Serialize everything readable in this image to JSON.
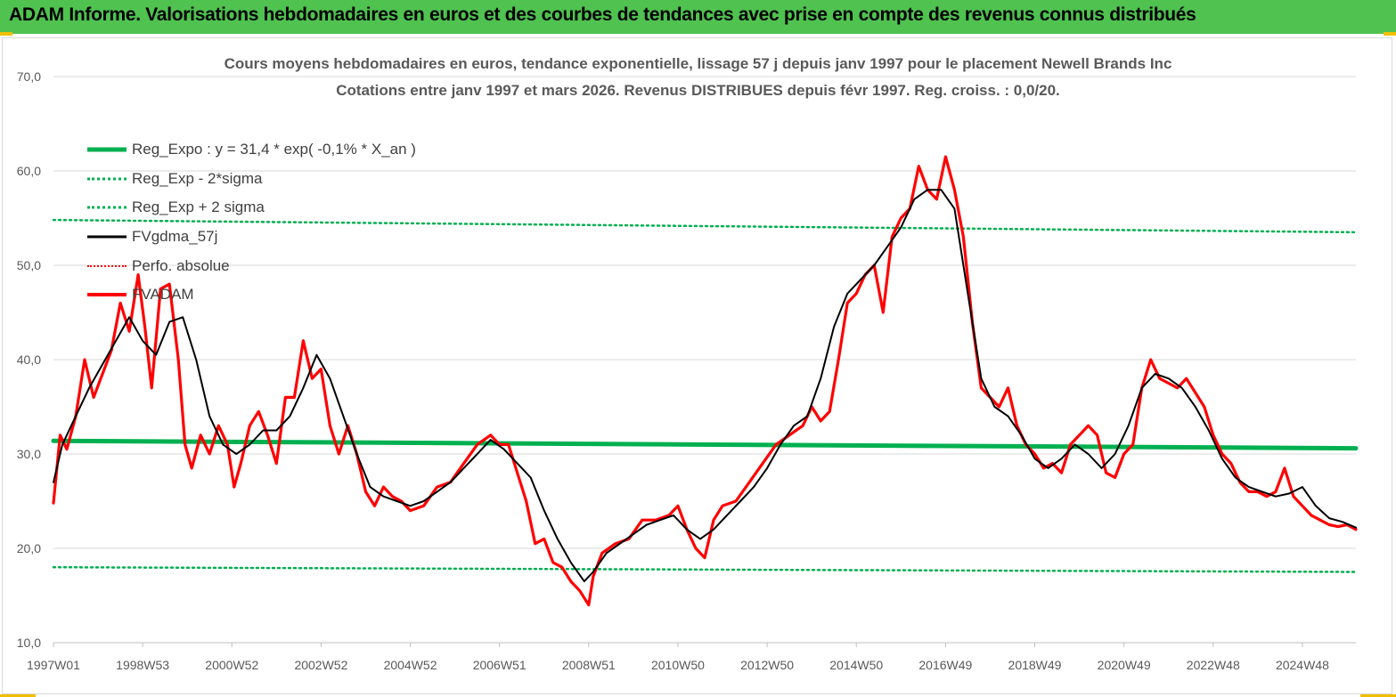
{
  "banner": {
    "text": "ADAM Informe. Valorisations hebdomadaires en euros et des courbes de tendances avec prise en compte des revenus connus distribués"
  },
  "colors": {
    "banner_bg": "#4fc24f",
    "reg_expo": "#00b050",
    "sigma_bands": "#00b050",
    "fvgdma": "#000000",
    "perfo": "#ff0000",
    "fvadam": "#ff0000",
    "grid": "#d9d9d9",
    "axis_text": "#595959"
  },
  "chart_data": {
    "type": "line",
    "title": "Cours moyens hebdomadaires en euros, tendance exponentielle, lissage 57 j depuis janv 1997 pour le placement Newell Brands Inc",
    "subtitle": "Cotations entre janv 1997 et mars 2026. Revenus DISTRIBUES depuis févr 1997. Reg. croiss. : 0,0/20.",
    "xlabel": "",
    "ylabel": "",
    "x_range": [
      1997.0,
      2026.2
    ],
    "ylim": [
      10,
      70
    ],
    "y_ticks": [
      "10,0",
      "20,0",
      "30,0",
      "40,0",
      "50,0",
      "60,0",
      "70,0"
    ],
    "y_tick_values": [
      10,
      20,
      30,
      40,
      50,
      60,
      70
    ],
    "x_tick_labels": [
      "1997W01",
      "1998W53",
      "2000W52",
      "2002W52",
      "2004W52",
      "2006W51",
      "2008W51",
      "2010W50",
      "2012W50",
      "2014W50",
      "2016W49",
      "2018W49",
      "2020W49",
      "2022W48",
      "2024W48"
    ],
    "x_tick_values": [
      1997.0,
      1999.0,
      2001.0,
      2003.0,
      2005.0,
      2007.0,
      2009.0,
      2011.0,
      2013.0,
      2015.0,
      2017.0,
      2019.0,
      2021.0,
      2023.0,
      2025.0
    ],
    "grid": true,
    "legend_position": "top-left",
    "legend": [
      {
        "label": "Reg_Expo : y = 31,4 * exp( -0,1% *  X_an )",
        "style": "solid-thick",
        "color": "#00b050"
      },
      {
        "label": "Reg_Exp - 2*sigma",
        "style": "dotted",
        "color": "#00b050"
      },
      {
        "label": "Reg_Exp + 2 sigma",
        "style": "dotted",
        "color": "#00b050"
      },
      {
        "label": "FVgdma_57j",
        "style": "solid",
        "color": "#000000"
      },
      {
        "label": "Perfo. absolue",
        "style": "dotted",
        "color": "#ff0000"
      },
      {
        "label": "FVADAM",
        "style": "solid-thick",
        "color": "#ff0000"
      }
    ],
    "series": [
      {
        "name": "Reg_Expo : y = 31,4 * exp( -0,1% *  X_an )",
        "x": [
          1997.0,
          2026.2
        ],
        "y": [
          31.4,
          30.6
        ]
      },
      {
        "name": "Reg_Exp - 2*sigma",
        "x": [
          1997.0,
          2026.2
        ],
        "y": [
          18.0,
          17.5
        ]
      },
      {
        "name": "Reg_Exp + 2 sigma",
        "x": [
          1997.0,
          2026.2
        ],
        "y": [
          54.8,
          53.5
        ]
      },
      {
        "name": "FVADAM",
        "x": [
          1997.0,
          1997.15,
          1997.3,
          1997.5,
          1997.7,
          1997.9,
          1998.1,
          1998.3,
          1998.5,
          1998.7,
          1998.9,
          1999.05,
          1999.2,
          1999.4,
          1999.6,
          1999.8,
          1999.95,
          2000.1,
          2000.3,
          2000.5,
          2000.7,
          2000.9,
          2001.05,
          2001.2,
          2001.4,
          2001.6,
          2001.8,
          2002.0,
          2002.2,
          2002.4,
          2002.6,
          2002.8,
          2003.0,
          2003.2,
          2003.4,
          2003.6,
          2003.8,
          2004.0,
          2004.2,
          2004.4,
          2004.6,
          2004.8,
          2005.0,
          2005.3,
          2005.6,
          2005.9,
          2006.2,
          2006.5,
          2006.8,
          2007.0,
          2007.2,
          2007.4,
          2007.6,
          2007.8,
          2008.0,
          2008.2,
          2008.4,
          2008.6,
          2008.8,
          2009.0,
          2009.1,
          2009.3,
          2009.6,
          2009.9,
          2010.2,
          2010.5,
          2010.8,
          2011.0,
          2011.2,
          2011.4,
          2011.6,
          2011.8,
          2012.0,
          2012.3,
          2012.6,
          2012.9,
          2013.2,
          2013.5,
          2013.8,
          2014.0,
          2014.2,
          2014.4,
          2014.6,
          2014.8,
          2015.0,
          2015.2,
          2015.4,
          2015.6,
          2015.8,
          2016.0,
          2016.2,
          2016.4,
          2016.6,
          2016.8,
          2017.0,
          2017.2,
          2017.4,
          2017.6,
          2017.8,
          2018.0,
          2018.2,
          2018.4,
          2018.6,
          2018.8,
          2019.0,
          2019.2,
          2019.4,
          2019.6,
          2019.8,
          2020.0,
          2020.2,
          2020.4,
          2020.6,
          2020.8,
          2021.0,
          2021.2,
          2021.4,
          2021.6,
          2021.8,
          2022.0,
          2022.2,
          2022.4,
          2022.6,
          2022.8,
          2023.0,
          2023.2,
          2023.4,
          2023.6,
          2023.8,
          2024.0,
          2024.2,
          2024.4,
          2024.6,
          2024.8,
          2025.0,
          2025.2,
          2025.4,
          2025.6,
          2025.8,
          2026.0,
          2026.2
        ],
        "y": [
          24.8,
          32.0,
          30.5,
          34.0,
          40.0,
          36.0,
          38.5,
          41.0,
          46.0,
          43.0,
          49.0,
          43.5,
          37.0,
          47.5,
          48.0,
          40.0,
          31.0,
          28.5,
          32.0,
          30.0,
          33.0,
          31.0,
          26.5,
          29.0,
          33.0,
          34.5,
          32.0,
          29.0,
          36.0,
          36.0,
          42.0,
          38.0,
          39.0,
          33.0,
          30.0,
          33.0,
          30.0,
          26.0,
          24.5,
          26.5,
          25.5,
          25.0,
          24.0,
          24.5,
          26.5,
          27.0,
          29.0,
          31.0,
          32.0,
          31.0,
          31.0,
          28.0,
          25.0,
          20.5,
          21.0,
          18.5,
          18.0,
          16.5,
          15.5,
          14.0,
          17.0,
          19.5,
          20.5,
          21.0,
          23.0,
          23.0,
          23.5,
          24.5,
          22.0,
          20.0,
          19.0,
          23.0,
          24.5,
          25.0,
          27.0,
          29.0,
          31.0,
          32.0,
          33.0,
          35.0,
          33.5,
          34.5,
          40.0,
          46.0,
          47.0,
          49.0,
          50.0,
          45.0,
          53.0,
          55.0,
          56.0,
          60.5,
          58.0,
          57.0,
          61.5,
          58.0,
          53.0,
          44.0,
          37.0,
          36.0,
          35.0,
          37.0,
          33.0,
          31.0,
          30.0,
          28.5,
          29.0,
          28.0,
          31.0,
          32.0,
          33.0,
          32.0,
          28.0,
          27.5,
          30.0,
          31.0,
          37.0,
          40.0,
          38.0,
          37.5,
          37.0,
          38.0,
          36.5,
          35.0,
          32.0,
          30.0,
          29.0,
          27.0,
          26.0,
          26.0,
          25.5,
          26.0,
          28.5,
          25.5,
          24.5,
          23.5,
          23.0,
          22.5,
          22.3,
          22.5,
          22.0
        ]
      },
      {
        "name": "FVgdma_57j",
        "x": [
          1997.0,
          1997.2,
          1997.5,
          1997.8,
          1998.1,
          1998.4,
          1998.7,
          1999.0,
          1999.3,
          1999.6,
          1999.9,
          2000.2,
          2000.5,
          2000.8,
          2001.1,
          2001.4,
          2001.7,
          2002.0,
          2002.3,
          2002.6,
          2002.9,
          2003.2,
          2003.5,
          2003.8,
          2004.1,
          2004.4,
          2004.7,
          2005.0,
          2005.3,
          2005.6,
          2005.9,
          2006.2,
          2006.5,
          2006.8,
          2007.1,
          2007.4,
          2007.7,
          2008.0,
          2008.3,
          2008.6,
          2008.9,
          2009.1,
          2009.4,
          2009.7,
          2010.0,
          2010.3,
          2010.6,
          2010.9,
          2011.2,
          2011.5,
          2011.8,
          2012.1,
          2012.4,
          2012.7,
          2013.0,
          2013.3,
          2013.6,
          2013.9,
          2014.2,
          2014.5,
          2014.8,
          2015.1,
          2015.4,
          2015.7,
          2016.0,
          2016.3,
          2016.6,
          2016.9,
          2017.2,
          2017.5,
          2017.8,
          2018.1,
          2018.4,
          2018.7,
          2019.0,
          2019.3,
          2019.6,
          2019.9,
          2020.2,
          2020.5,
          2020.8,
          2021.1,
          2021.4,
          2021.7,
          2022.0,
          2022.3,
          2022.6,
          2022.9,
          2023.2,
          2023.5,
          2023.8,
          2024.1,
          2024.4,
          2024.7,
          2025.0,
          2025.3,
          2025.6,
          2025.9,
          2026.2
        ],
        "y": [
          27.0,
          31.0,
          34.0,
          37.0,
          39.5,
          42.0,
          44.5,
          42.0,
          40.5,
          44.0,
          44.5,
          40.0,
          34.0,
          31.0,
          30.0,
          31.0,
          32.5,
          32.5,
          34.0,
          37.0,
          40.5,
          38.0,
          34.0,
          30.0,
          26.5,
          25.5,
          25.0,
          24.5,
          25.0,
          26.0,
          27.0,
          28.5,
          30.0,
          31.5,
          30.5,
          29.0,
          27.5,
          24.0,
          21.0,
          18.5,
          16.5,
          17.5,
          19.5,
          20.5,
          21.5,
          22.5,
          23.0,
          23.5,
          22.0,
          21.0,
          22.0,
          23.5,
          25.0,
          26.5,
          28.5,
          31.0,
          33.0,
          34.0,
          38.0,
          43.5,
          47.0,
          48.5,
          50.0,
          52.0,
          54.0,
          57.0,
          58.0,
          58.0,
          56.0,
          47.0,
          38.0,
          35.0,
          34.0,
          32.0,
          29.5,
          28.5,
          29.5,
          31.0,
          30.0,
          28.5,
          30.0,
          33.0,
          37.0,
          38.5,
          38.0,
          37.0,
          35.0,
          32.5,
          29.5,
          27.5,
          26.5,
          26.0,
          25.5,
          25.8,
          26.5,
          24.5,
          23.2,
          22.8,
          22.2
        ]
      }
    ]
  }
}
